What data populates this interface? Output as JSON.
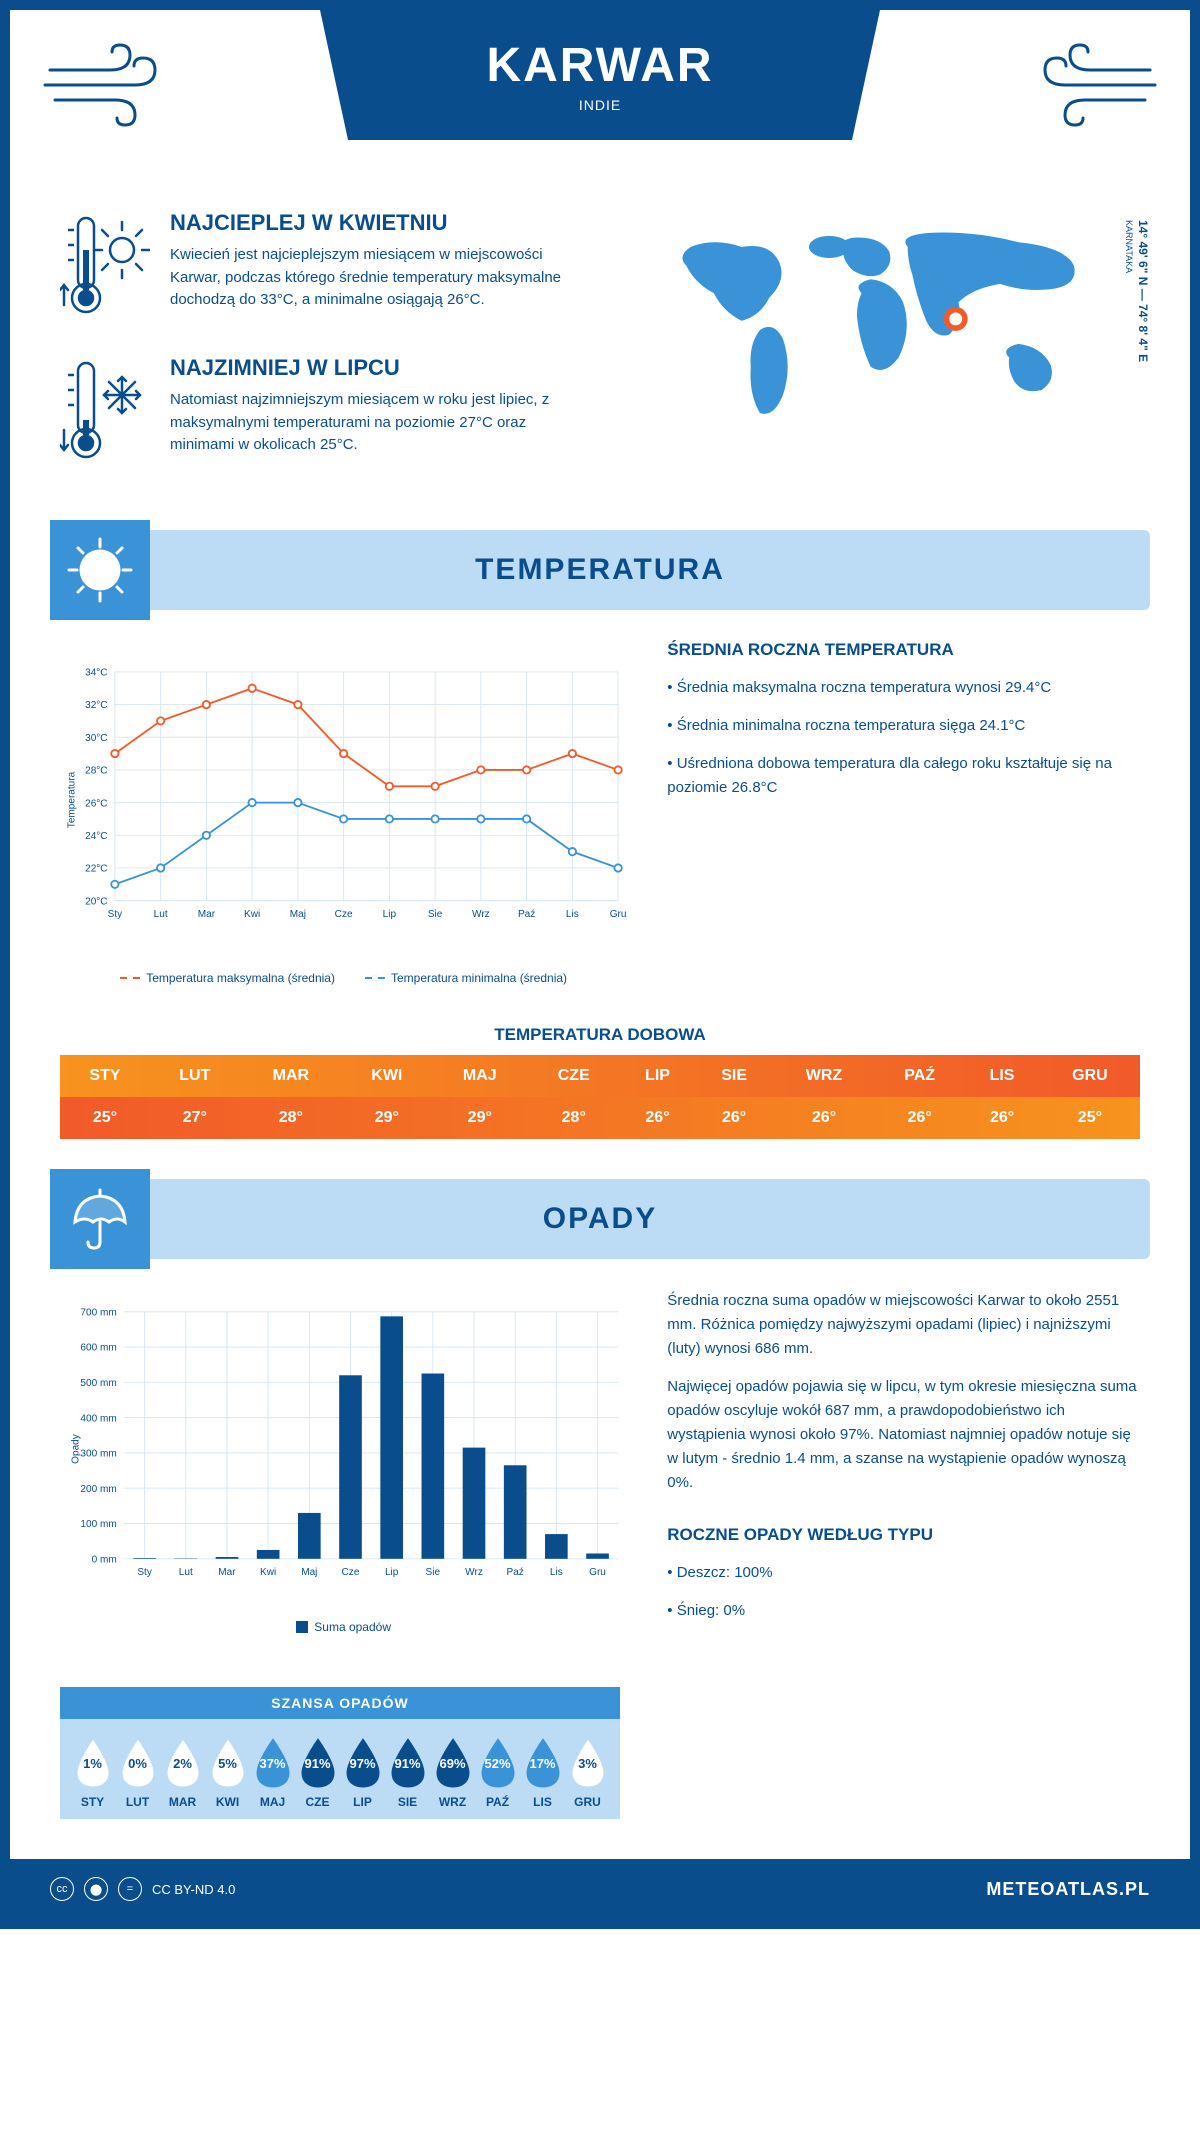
{
  "header": {
    "city": "KARWAR",
    "country": "INDIE"
  },
  "coords": {
    "lat": "14° 49' 6\" N",
    "lon": "74° 8' 4\" E",
    "region": "KARNATAKA"
  },
  "intro": {
    "hot": {
      "title": "NAJCIEPLEJ W KWIETNIU",
      "text": "Kwiecień jest najcieplejszym miesiącem w miejscowości Karwar, podczas którego średnie temperatury maksymalne dochodzą do 33°C, a minimalne osiągają 26°C."
    },
    "cold": {
      "title": "NAJZIMNIEJ W LIPCU",
      "text": "Natomiast najzimniejszym miesiącem w roku jest lipiec, z maksymalnymi temperaturami na poziomie 27°C oraz minimami w okolicach 25°C."
    }
  },
  "sections": {
    "temperature": "TEMPERATURA",
    "precipitation": "OPADY"
  },
  "months_short": [
    "Sty",
    "Lut",
    "Mar",
    "Kwi",
    "Maj",
    "Cze",
    "Lip",
    "Sie",
    "Wrz",
    "Paź",
    "Lis",
    "Gru"
  ],
  "months_upper": [
    "STY",
    "LUT",
    "MAR",
    "KWI",
    "MAJ",
    "CZE",
    "LIP",
    "SIE",
    "WRZ",
    "PAŹ",
    "LIS",
    "GRU"
  ],
  "temp_chart": {
    "type": "line",
    "ylabel": "Temperatura",
    "ylim": [
      20,
      34
    ],
    "ytick_step": 2,
    "ytick_suffix": "°C",
    "grid_color": "#d6e6f3",
    "axis_color": "#0a4d8c",
    "label_fontsize": 11,
    "series": [
      {
        "name": "Temperatura maksymalna (średnia)",
        "color": "#f15a29",
        "values": [
          29,
          31,
          32,
          33,
          32,
          29,
          27,
          27,
          28,
          28,
          29,
          28
        ]
      },
      {
        "name": "Temperatura minimalna (średnia)",
        "color": "#3993d6",
        "values": [
          21,
          22,
          24,
          26,
          26,
          25,
          25,
          25,
          25,
          25,
          23,
          22
        ]
      }
    ]
  },
  "temp_side": {
    "title": "ŚREDNIA ROCZNA TEMPERATURA",
    "items": [
      "Średnia maksymalna roczna temperatura wynosi 29.4°C",
      "Średnia minimalna roczna temperatura sięga 24.1°C",
      "Uśredniona dobowa temperatura dla całego roku kształtuje się na poziomie 26.8°C"
    ]
  },
  "daily_temp": {
    "title": "TEMPERATURA DOBOWA",
    "values": [
      25,
      27,
      28,
      29,
      29,
      28,
      26,
      26,
      26,
      26,
      26,
      25
    ],
    "header_gradient": [
      "#f7931e",
      "#f15a29"
    ],
    "row_gradient": [
      "#f15a29",
      "#f7931e"
    ],
    "text_color": "#ffffff"
  },
  "precip_chart": {
    "type": "bar",
    "ylabel": "Opady",
    "ylim": [
      0,
      700
    ],
    "ytick_step": 100,
    "ytick_suffix": " mm",
    "bar_color": "#0a4d8c",
    "grid_color": "#d6e6f3",
    "axis_color": "#0a4d8c",
    "label_fontsize": 11,
    "values": [
      2,
      1,
      5,
      25,
      130,
      520,
      687,
      525,
      315,
      265,
      70,
      15
    ],
    "legend": "Suma opadów"
  },
  "precip_side": {
    "p1": "Średnia roczna suma opadów w miejscowości Karwar to około 2551 mm. Różnica pomiędzy najwyższymi opadami (lipiec) i najniższymi (luty) wynosi 686 mm.",
    "p2": "Najwięcej opadów pojawia się w lipcu, w tym okresie miesięczna suma opadów oscyluje wokół 687 mm, a prawdopodobieństwo ich wystąpienia wynosi około 97%. Natomiast najmniej opadów notuje się w lutym - średnio 1.4 mm, a szanse na wystąpienie opadów wynoszą 0%.",
    "type_title": "ROCZNE OPADY WEDŁUG TYPU",
    "type_items": [
      "Deszcz: 100%",
      "Śnieg: 0%"
    ]
  },
  "rain_chance": {
    "title": "SZANSA OPADÓW",
    "values": [
      1,
      0,
      2,
      5,
      37,
      91,
      97,
      91,
      69,
      52,
      17,
      3
    ],
    "low_fill": "#ffffff",
    "low_text": "#0a4d8c",
    "high_fill": "#0a4d8c",
    "high_text": "#ffffff",
    "mid_fill": "#3993d6",
    "threshold_low": 10,
    "threshold_high": 60
  },
  "footer": {
    "license": "CC BY-ND 4.0",
    "site": "METEOATLAS.PL"
  }
}
